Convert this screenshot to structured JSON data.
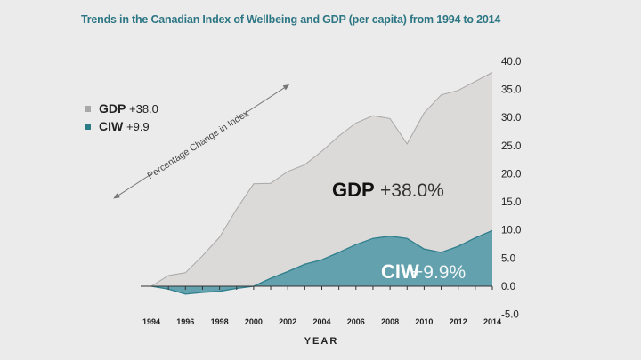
{
  "chart_data": {
    "type": "area",
    "title": "Trends in the Canadian Index of Wellbeing and GDP (per capita) from 1994 to 2014",
    "xlabel": "YEAR",
    "ylabel": "Percentage Change in Index",
    "x": [
      1994,
      1995,
      1996,
      1997,
      1998,
      1999,
      2000,
      2001,
      2002,
      2003,
      2004,
      2005,
      2006,
      2007,
      2008,
      2009,
      2010,
      2011,
      2012,
      2013,
      2014
    ],
    "x_tick_labels": [
      "1994",
      "1996",
      "1998",
      "2000",
      "2002",
      "2004",
      "2006",
      "2008",
      "2010",
      "2012",
      "2014"
    ],
    "y_tick_labels": [
      "40.0",
      "35.0",
      "30.0",
      "25.0",
      "20.0",
      "15.0",
      "10.0",
      "5.0",
      "0.0",
      "-5.0"
    ],
    "ylim": [
      -5,
      40
    ],
    "xlim": [
      1994,
      2014
    ],
    "grid": false,
    "legend_position": "top-left",
    "series": [
      {
        "name": "GDP",
        "legend_value": "+38.0",
        "annotation": "+38.0%",
        "color": "#dcdad9",
        "line_color": "#a9a7a7",
        "values": [
          0,
          1.9,
          2.4,
          5.4,
          8.7,
          13.7,
          18.2,
          18.3,
          20.4,
          21.6,
          24.0,
          26.7,
          29.0,
          30.3,
          29.8,
          25.3,
          30.8,
          34.0,
          34.8,
          36.4,
          38.0
        ]
      },
      {
        "name": "CIW",
        "legend_value": "+9.9",
        "annotation": "+9.9%",
        "color": "#62a1ad",
        "line_color": "#2f7f8c",
        "values": [
          0,
          -0.5,
          -1.4,
          -1.1,
          -0.9,
          -0.4,
          0,
          1.4,
          2.6,
          3.9,
          4.7,
          6.0,
          7.4,
          8.5,
          8.9,
          8.5,
          6.6,
          6.0,
          7.1,
          8.6,
          9.9
        ]
      }
    ]
  }
}
